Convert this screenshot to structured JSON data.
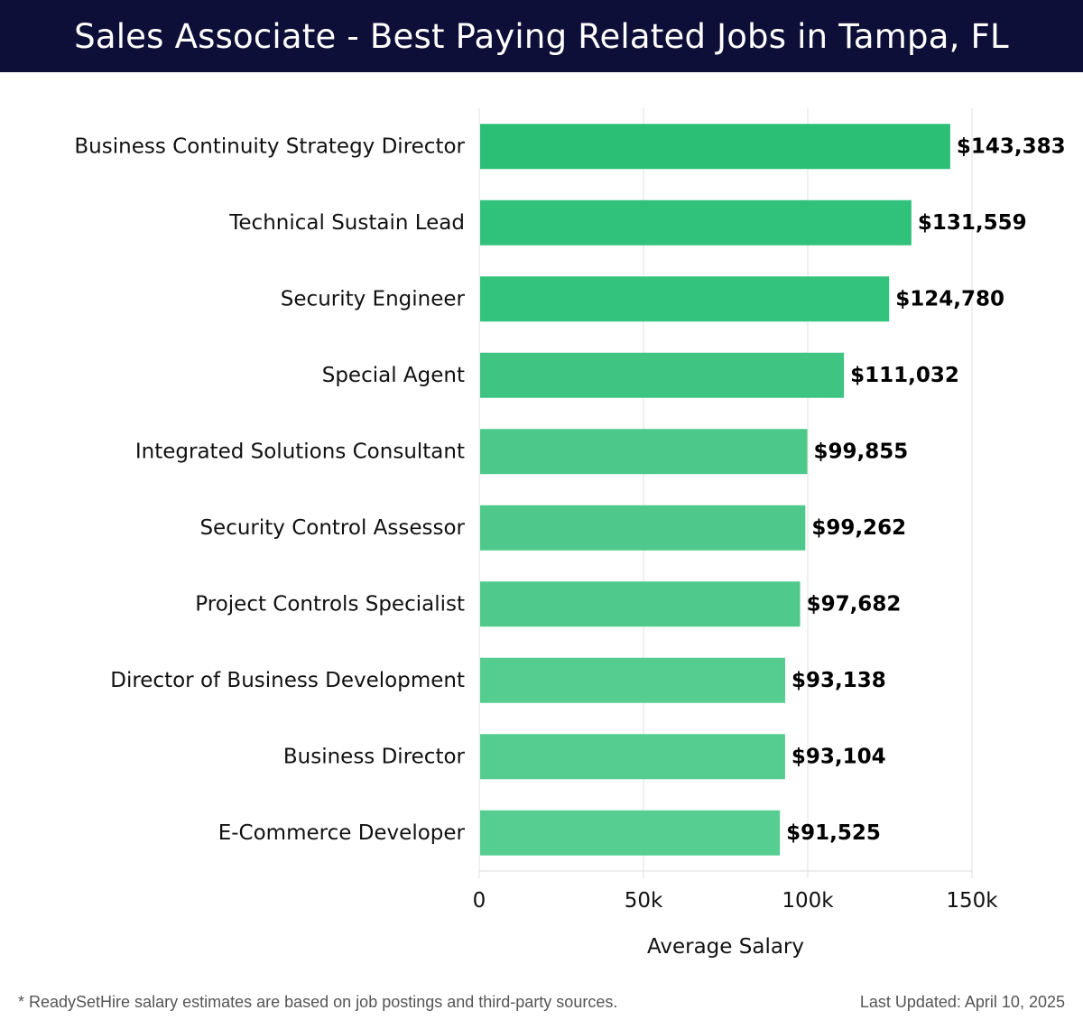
{
  "header": {
    "title": "Sales Associate - Best Paying Related Jobs in Tampa, FL"
  },
  "chart_data": {
    "type": "bar",
    "orientation": "horizontal",
    "title": "Sales Associate - Best Paying Related Jobs in Tampa, FL",
    "xlabel": "Average Salary",
    "ylabel": "",
    "xlim": [
      0,
      150000
    ],
    "ticks": [
      {
        "value": 0,
        "label": "0"
      },
      {
        "value": 50000,
        "label": "50k"
      },
      {
        "value": 100000,
        "label": "100k"
      },
      {
        "value": 150000,
        "label": "150k"
      }
    ],
    "grid": true,
    "categories": [
      "Business Continuity Strategy Director",
      "Technical Sustain Lead",
      "Security Engineer",
      "Special Agent",
      "Integrated Solutions Consultant",
      "Security Control Assessor",
      "Project Controls Specialist",
      "Director of Business Development",
      "Business Director",
      "E-Commerce Developer"
    ],
    "values": [
      143383,
      131559,
      124780,
      111032,
      99855,
      99262,
      97682,
      93138,
      93104,
      91525
    ],
    "value_labels": [
      "$143,383",
      "$131,559",
      "$124,780",
      "$111,032",
      "$99,855",
      "$99,262",
      "$97,682",
      "$93,138",
      "$93,104",
      "$91,525"
    ],
    "bar_colors": [
      "#2bbf76",
      "#30c27a",
      "#34c37c",
      "#3fc482",
      "#4cc98a",
      "#4ec98b",
      "#50ca8c",
      "#55cd90",
      "#55cd90",
      "#56cd91"
    ]
  },
  "footer": {
    "note": "* ReadySetHire salary estimates are based on job postings and third-party sources.",
    "updated": "Last Updated: April 10, 2025"
  }
}
